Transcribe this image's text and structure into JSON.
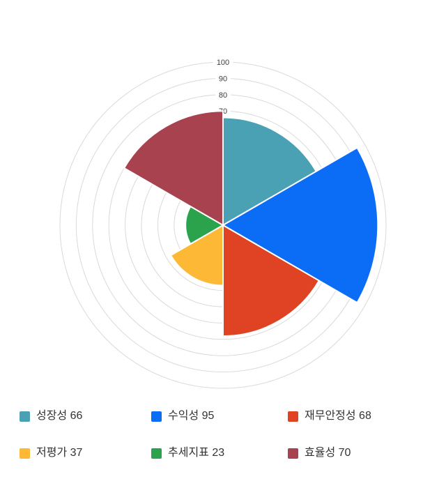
{
  "chart_data": {
    "type": "polar-rose",
    "title": "",
    "categories": [
      {
        "label": "성장성",
        "value": 66,
        "color": "#4AA1B3"
      },
      {
        "label": "수익성",
        "value": 95,
        "color": "#0B6CF5"
      },
      {
        "label": "재무안정성",
        "value": 68,
        "color": "#DF4323"
      },
      {
        "label": "저평가",
        "value": 37,
        "color": "#FDB935"
      },
      {
        "label": "추세지표",
        "value": 23,
        "color": "#2BA24C"
      },
      {
        "label": "효율성",
        "value": 70,
        "color": "#A8424F"
      }
    ],
    "axis": {
      "min": 0,
      "max": 100,
      "grid_interval": 10,
      "tick_labels": [
        100,
        90,
        80,
        70
      ]
    },
    "layout": {
      "legend_position": "bottom",
      "grid": true,
      "start_angle_deg": 0,
      "sector_sweep_deg": 60
    },
    "grid_color": "#D9D9D9",
    "axis_label_color": "#3D3D3D",
    "legend_text_color": "#333333",
    "background": "#FFFFFF"
  }
}
